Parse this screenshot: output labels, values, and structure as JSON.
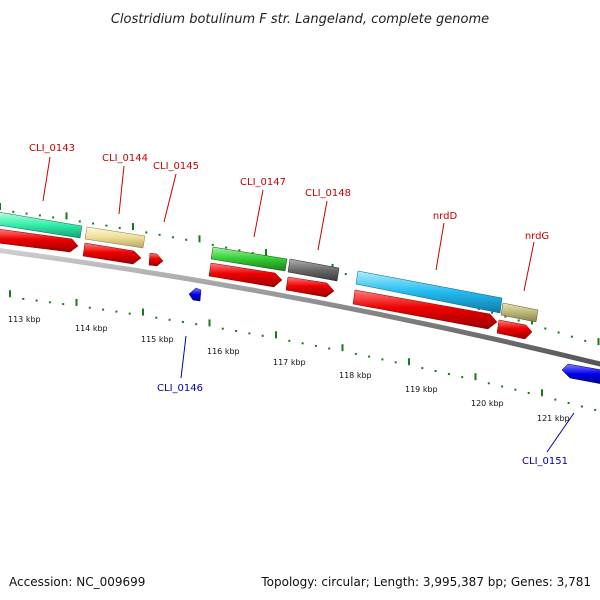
{
  "title": "Clostridium botulinum F str. Langeland, complete genome",
  "accession": "Accession: NC_009699",
  "topology": "Topology: circular; Length: 3,995,387 bp; Genes: 3,781",
  "colors": {
    "forward_label": "#cc0000",
    "reverse_label": "#0000aa",
    "cds_red": "#ee0000",
    "blue_rev": "#0000ee",
    "backbone": "#888888",
    "tick_green": "#1a7a1a"
  },
  "scale_labels": [
    "113 kbp",
    "114 kbp",
    "115 kbp",
    "116 kbp",
    "117 kbp",
    "118 kbp",
    "119 kbp",
    "120 kbp",
    "121 kbp"
  ],
  "forward_labels": [
    "CLI_0143",
    "CLI_0144",
    "CLI_0145",
    "CLI_0147",
    "CLI_0148",
    "nrdD",
    "nrdG"
  ],
  "reverse_labels": [
    "CLI_0146",
    "CLI_0151"
  ]
}
